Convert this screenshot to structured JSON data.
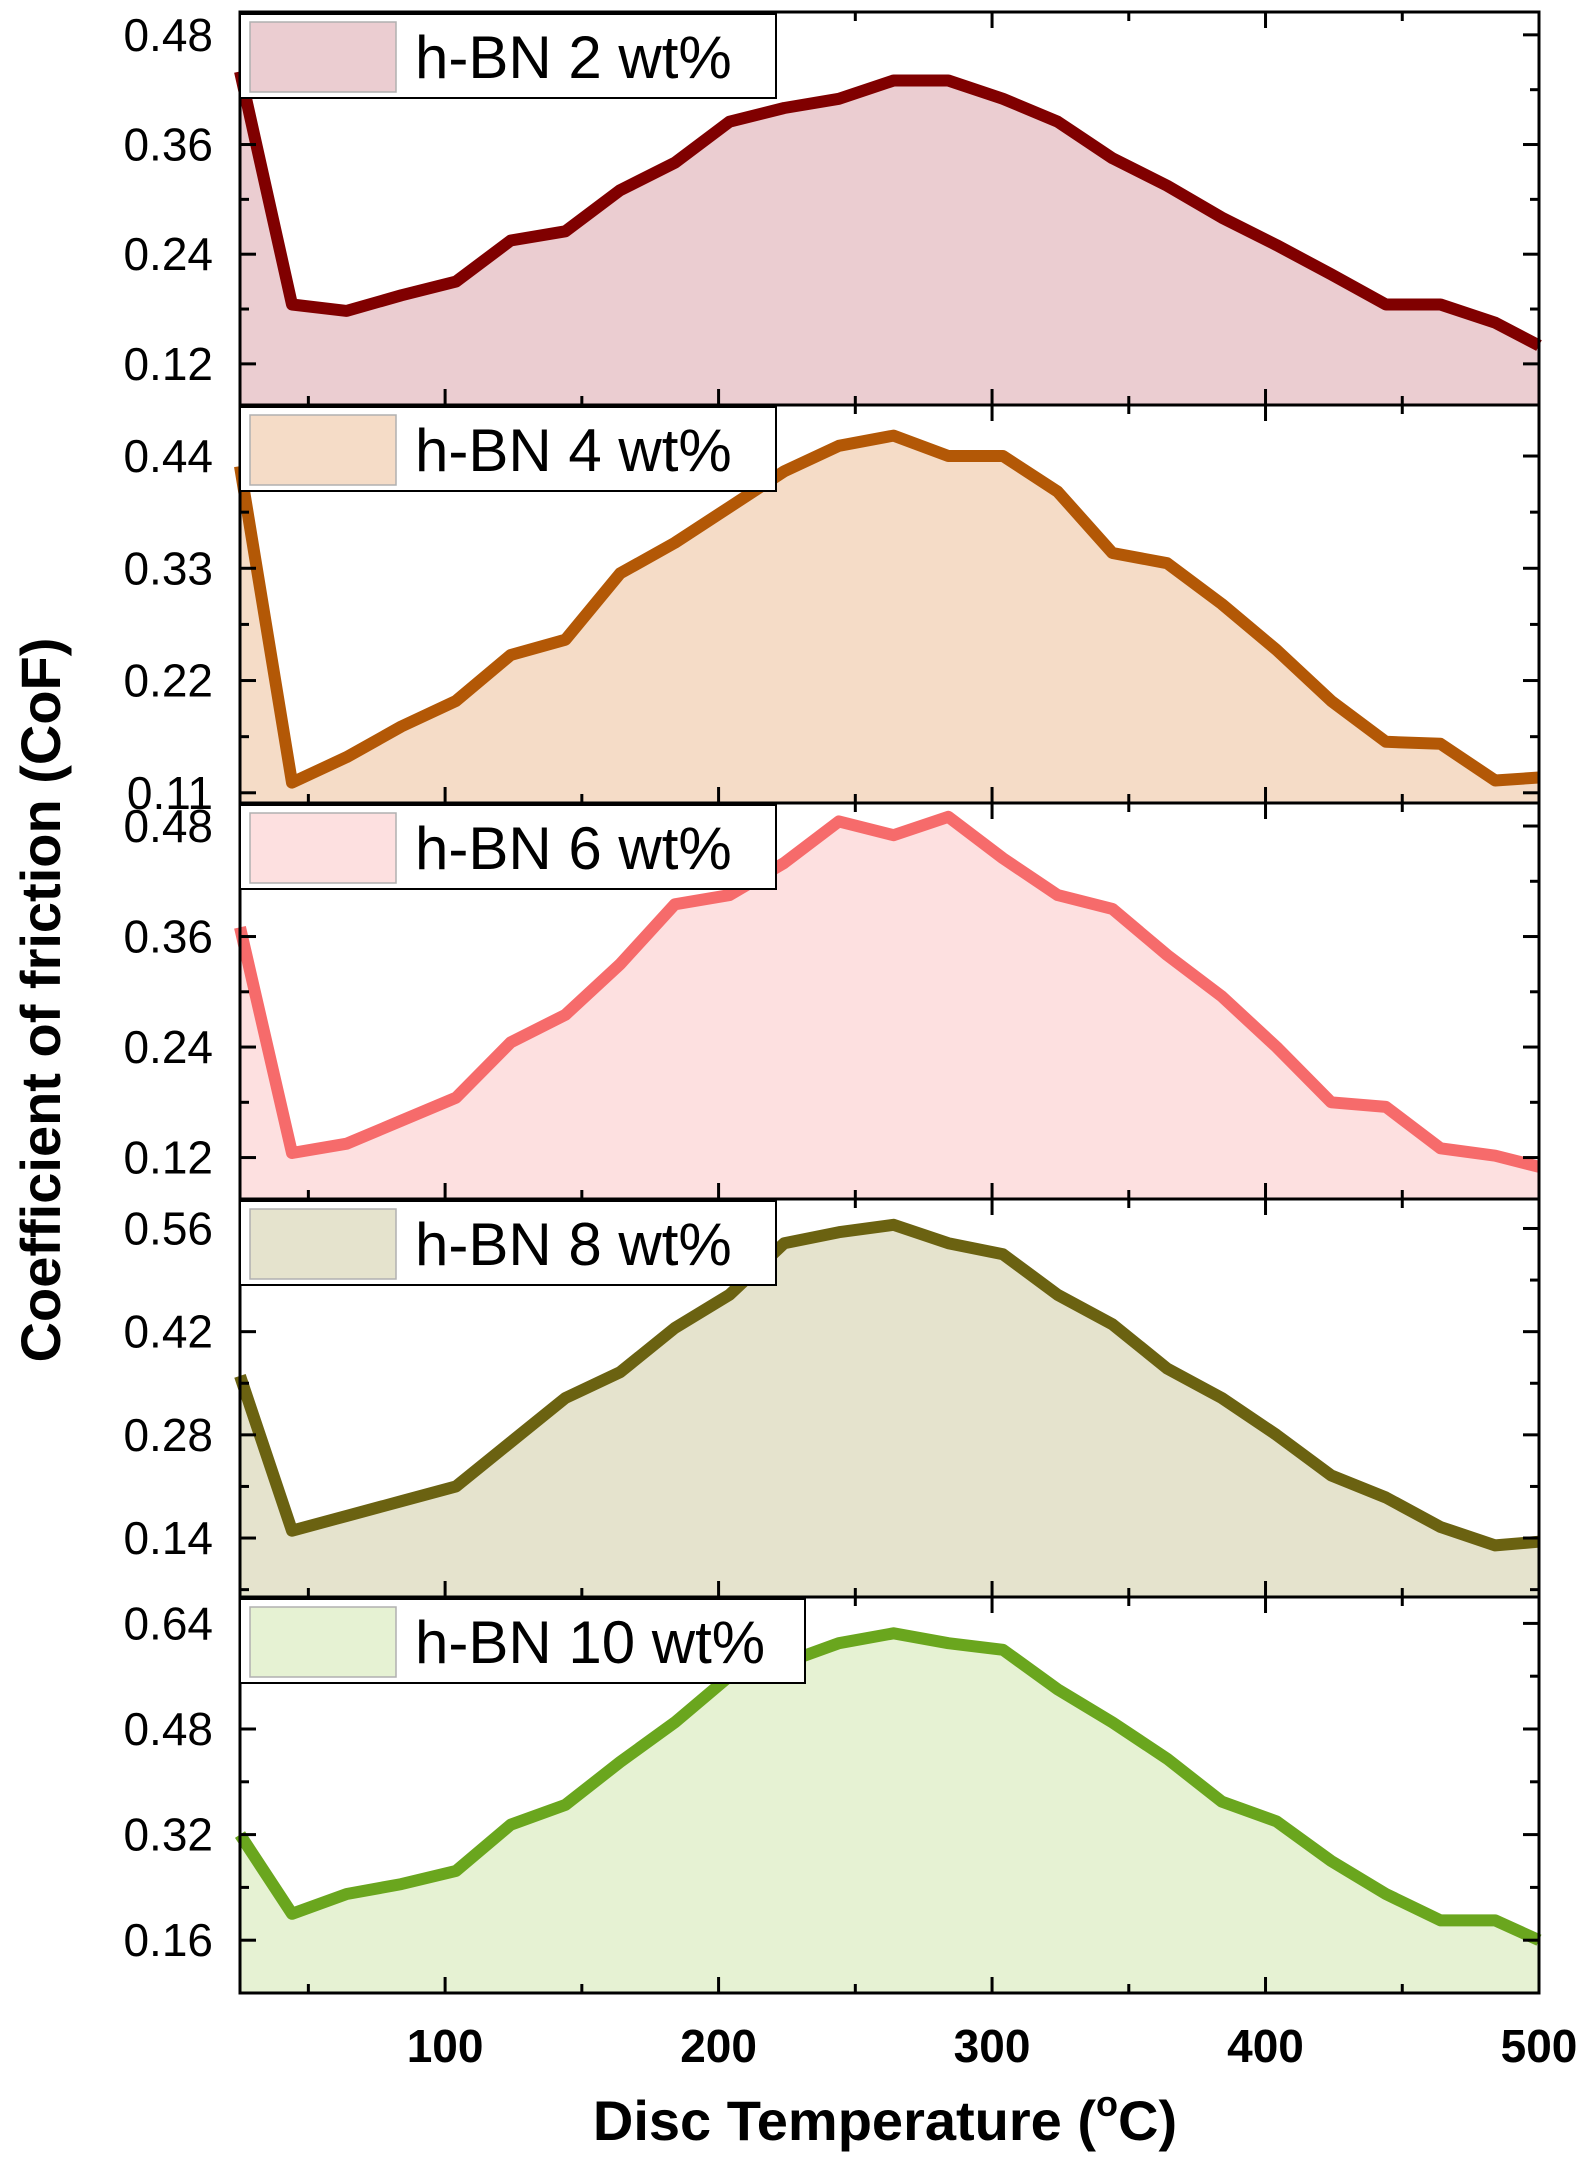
{
  "chart_data": {
    "type": "area",
    "xlabel": "Disc Temperature (",
    "xlabel_sup": "o",
    "xlabel_tail": "C)",
    "ylabel": "Coefficient of friction (CoF)",
    "xlim": [
      25,
      500
    ],
    "xticks": [
      100,
      200,
      300,
      400,
      500
    ],
    "x": [
      25,
      44,
      64,
      84,
      104,
      124,
      144,
      164,
      184,
      204,
      224,
      244,
      264,
      284,
      304,
      324,
      344,
      364,
      384,
      404,
      424,
      444,
      464,
      484,
      500
    ],
    "panels": [
      {
        "legend": "h-BN 2 wt%",
        "line_color": "#800000",
        "fill_color": "#ebcdd1",
        "ylim": [
          0.075,
          0.505
        ],
        "yticks": [
          0.12,
          0.24,
          0.36,
          0.48
        ],
        "ytick_labels": [
          "0.12",
          "0.24",
          "0.36",
          "0.48"
        ],
        "values": [
          0.44,
          0.185,
          0.178,
          0.195,
          0.21,
          0.255,
          0.265,
          0.31,
          0.34,
          0.385,
          0.4,
          0.41,
          0.43,
          0.43,
          0.41,
          0.385,
          0.345,
          0.315,
          0.28,
          0.25,
          0.218,
          0.185,
          0.185,
          0.165,
          0.14
        ]
      },
      {
        "legend": "h-BN 4 wt%",
        "line_color": "#b35806",
        "fill_color": "#f5dcc7",
        "ylim": [
          0.1,
          0.49
        ],
        "yticks": [
          0.11,
          0.22,
          0.33,
          0.44
        ],
        "ytick_labels": [
          "0.11",
          "0.22",
          "0.33",
          "0.44"
        ],
        "values": [
          0.43,
          0.12,
          0.145,
          0.175,
          0.2,
          0.245,
          0.26,
          0.325,
          0.355,
          0.39,
          0.425,
          0.45,
          0.46,
          0.44,
          0.44,
          0.405,
          0.345,
          0.335,
          0.295,
          0.25,
          0.2,
          0.16,
          0.158,
          0.122,
          0.125
        ]
      },
      {
        "legend": "h-BN 6 wt%",
        "line_color": "#f66b6b",
        "fill_color": "#fde0e0",
        "ylim": [
          0.075,
          0.505
        ],
        "yticks": [
          0.12,
          0.24,
          0.36,
          0.48
        ],
        "ytick_labels": [
          "0.12",
          "0.24",
          "0.36",
          "0.48"
        ],
        "values": [
          0.37,
          0.125,
          0.135,
          0.16,
          0.185,
          0.245,
          0.275,
          0.33,
          0.395,
          0.405,
          0.44,
          0.485,
          0.47,
          0.49,
          0.445,
          0.405,
          0.39,
          0.34,
          0.295,
          0.24,
          0.18,
          0.175,
          0.13,
          0.122,
          0.11
        ]
      },
      {
        "legend": "h-BN 8 wt%",
        "line_color": "#6b6211",
        "fill_color": "#e5e3cd",
        "ylim": [
          0.06,
          0.6
        ],
        "yticks": [
          0.14,
          0.28,
          0.42,
          0.56
        ],
        "ytick_labels": [
          "0.14",
          "0.28",
          "0.42",
          "0.56"
        ],
        "values": [
          0.36,
          0.15,
          0.17,
          0.19,
          0.21,
          0.27,
          0.33,
          0.365,
          0.425,
          0.47,
          0.54,
          0.555,
          0.565,
          0.54,
          0.525,
          0.47,
          0.43,
          0.37,
          0.33,
          0.28,
          0.225,
          0.195,
          0.155,
          0.13,
          0.135
        ]
      },
      {
        "legend": "h-BN 10 wt%",
        "line_color": "#6aa61e",
        "fill_color": "#e6f2d3",
        "ylim": [
          0.08,
          0.68
        ],
        "yticks": [
          0.16,
          0.32,
          0.48,
          0.64
        ],
        "ytick_labels": [
          "0.16",
          "0.32",
          "0.48",
          "0.64"
        ],
        "values": [
          0.32,
          0.2,
          0.23,
          0.245,
          0.265,
          0.335,
          0.365,
          0.43,
          0.49,
          0.56,
          0.58,
          0.61,
          0.625,
          0.61,
          0.6,
          0.54,
          0.49,
          0.435,
          0.37,
          0.34,
          0.28,
          0.23,
          0.19,
          0.19,
          0.16
        ]
      }
    ]
  }
}
